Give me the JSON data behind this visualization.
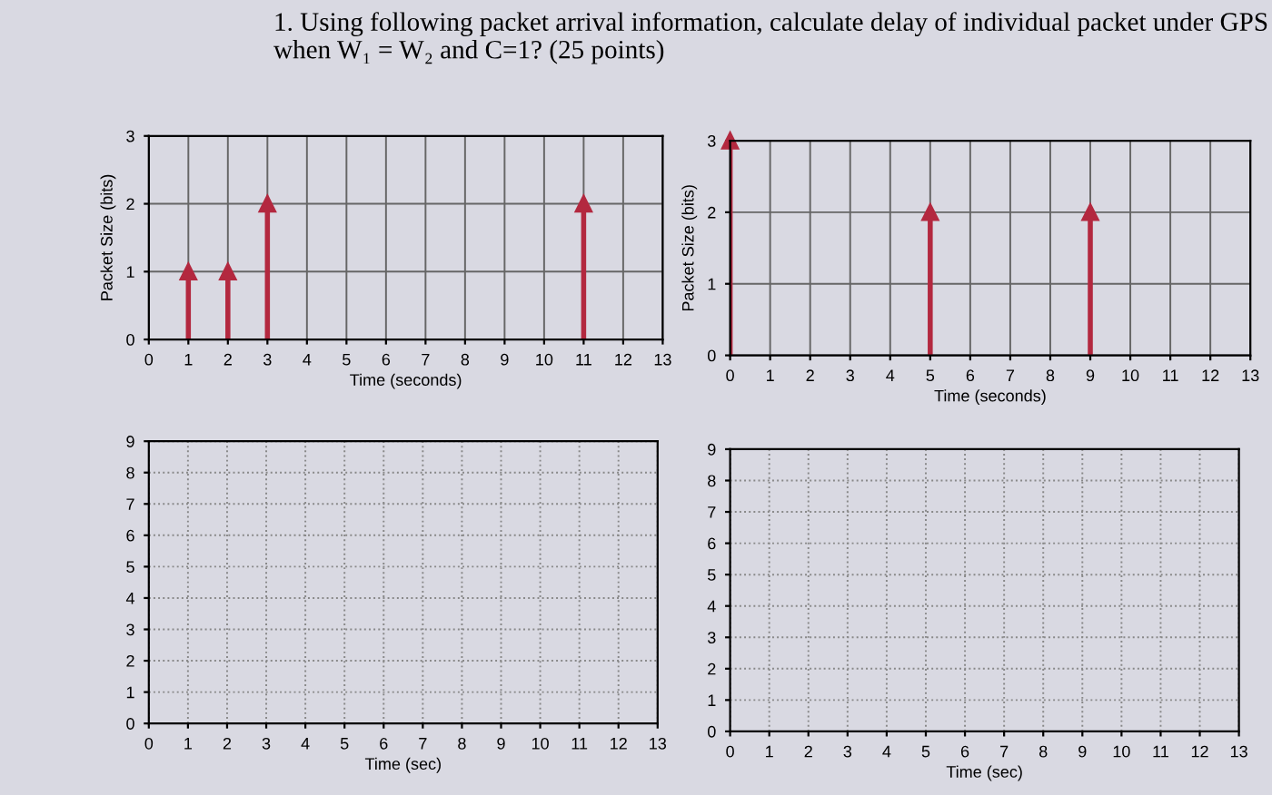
{
  "chart_data": [
    {
      "type": "lollipop",
      "title": "1. Using following packet arrival information, calculate delay of individual packet under GPS when W₁ = W₂ and C=1? (25 points)",
      "xlabel": "Time (seconds)",
      "ylabel": "Packet Size (bits)",
      "x": [
        1,
        2,
        3,
        11
      ],
      "series": [
        {
          "color": "#b3283f",
          "values": [
            1,
            1,
            2,
            2
          ]
        }
      ],
      "xlim": [
        0,
        13
      ],
      "xticks": [
        0,
        1,
        2,
        3,
        4,
        5,
        6,
        7,
        8,
        9,
        10,
        11,
        12,
        13
      ],
      "ylim": [
        0,
        3
      ],
      "yticks": [
        0,
        1,
        2,
        3
      ],
      "grid": true,
      "marker": "triangle"
    },
    {
      "type": "lollipop",
      "xlabel": "Time (seconds)",
      "ylabel": "Packet Size (bits)",
      "x": [
        0,
        5,
        9
      ],
      "series": [
        {
          "color": "#b3283f",
          "values": [
            3,
            2,
            2
          ]
        }
      ],
      "xlim": [
        0,
        13
      ],
      "xticks": [
        0,
        1,
        2,
        3,
        4,
        5,
        6,
        7,
        8,
        9,
        10,
        11,
        12,
        13
      ],
      "ylim": [
        0,
        3
      ],
      "yticks": [
        0,
        1,
        2,
        3
      ],
      "grid": true,
      "marker": "triangle"
    },
    {
      "type": "line",
      "xlabel": "Time (sec)",
      "xlim": [
        0,
        13
      ],
      "xticks": [
        0,
        1,
        2,
        3,
        4,
        5,
        6,
        7,
        8,
        9,
        10,
        11,
        12,
        13
      ],
      "ylim": [
        0,
        9
      ],
      "yticks": [
        0,
        1,
        2,
        3,
        4,
        5,
        6,
        7,
        8,
        9
      ],
      "grid": true
    },
    {
      "type": "line",
      "xlabel": "Time (sec)",
      "xlim": [
        0,
        13
      ],
      "xticks": [
        0,
        1,
        2,
        3,
        4,
        5,
        6,
        7,
        8,
        9,
        10,
        11,
        12,
        13
      ],
      "ylim": [
        0,
        9
      ],
      "yticks": [
        0,
        1,
        2,
        3,
        4,
        5,
        6,
        7,
        8,
        9
      ],
      "grid": true
    }
  ]
}
